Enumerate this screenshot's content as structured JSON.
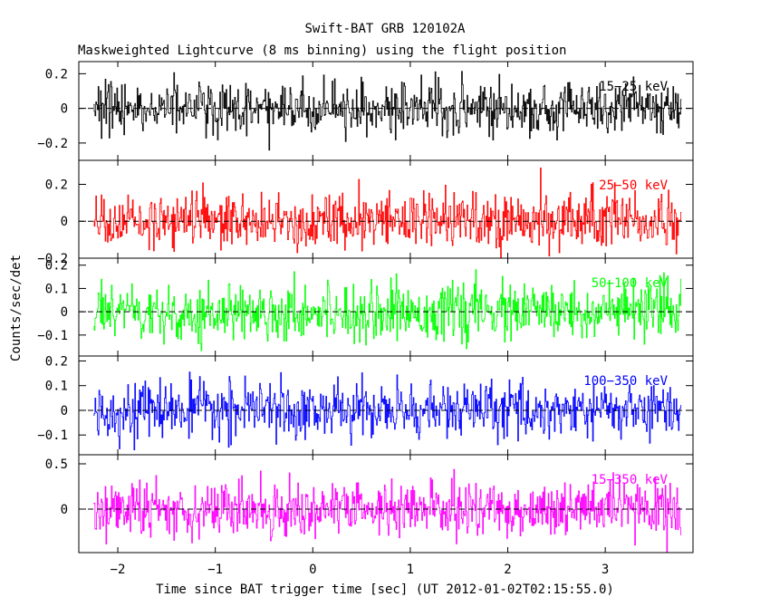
{
  "chart_data": {
    "type": "line",
    "title": "Swift-BAT GRB 120102A",
    "subtitle": "Maskweighted Lightcurve (8 ms binning) using the flight position",
    "xlabel": "Time since BAT trigger time [sec] (UT 2012-01-02T02:15:55.0)",
    "ylabel": "Counts/sec/det",
    "xlim": [
      -2.4,
      3.9
    ],
    "data_x_range": [
      -2.25,
      3.78
    ],
    "bin_width_sec": 0.008,
    "x_ticks": [
      -2,
      -1,
      0,
      1,
      2,
      3
    ],
    "x_tick_labels": [
      "−2",
      "−1",
      "0",
      "1",
      "2",
      "3"
    ],
    "panels": [
      {
        "name": "15-25 keV",
        "label": "15−25 keV",
        "color": "#000000",
        "ylim": [
          -0.3,
          0.27
        ],
        "y_ticks": [
          -0.2,
          0,
          0.2
        ],
        "y_tick_labels": [
          "−0.2",
          "0",
          "0.2"
        ],
        "noise_sigma": 0.075
      },
      {
        "name": "25-50 keV",
        "label": "25−50 keV",
        "color": "#ff0000",
        "ylim": [
          -0.2,
          0.33
        ],
        "y_ticks": [
          -0.2,
          0,
          0.2
        ],
        "y_tick_labels": [
          "−0.2",
          "0",
          "0.2"
        ],
        "noise_sigma": 0.075
      },
      {
        "name": "50-100 keV",
        "label": "50−100 keV",
        "color": "#00ff00",
        "ylim": [
          -0.19,
          0.23
        ],
        "y_ticks": [
          -0.1,
          0,
          0.1,
          0.2
        ],
        "y_tick_labels": [
          "−0.1",
          "0",
          "0.1",
          "0.2"
        ],
        "noise_sigma": 0.06
      },
      {
        "name": "100-350 keV",
        "label": "100−350 keV",
        "color": "#0000ff",
        "ylim": [
          -0.18,
          0.22
        ],
        "y_ticks": [
          -0.1,
          0,
          0.1,
          0.2
        ],
        "y_tick_labels": [
          "−0.1",
          "0",
          "0.1",
          "0.2"
        ],
        "noise_sigma": 0.055
      },
      {
        "name": "15-350 keV",
        "label": "15−350 keV",
        "color": "#ff00ff",
        "ylim": [
          -0.48,
          0.6
        ],
        "y_ticks": [
          0,
          0.5
        ],
        "y_tick_labels": [
          "0",
          "0.5"
        ],
        "noise_sigma": 0.15
      }
    ]
  }
}
